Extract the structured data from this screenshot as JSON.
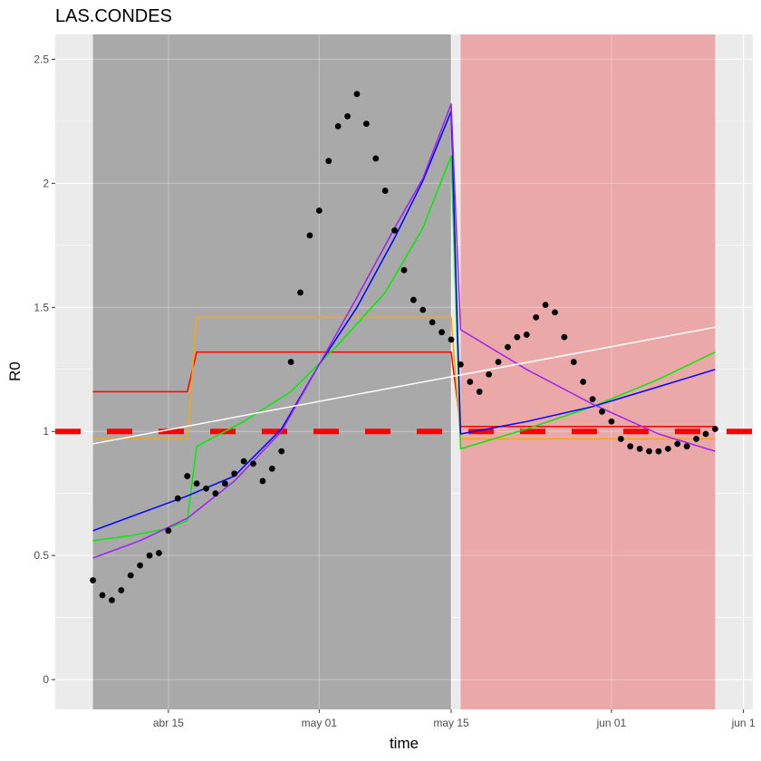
{
  "chart_data": {
    "type": "line",
    "title": "LAS.CONDES",
    "xlabel": "time",
    "ylabel": "R0",
    "x_range": [
      "2020-04-03",
      "2020-06-16"
    ],
    "ylim": [
      -0.12,
      2.6
    ],
    "y_ticks": [
      {
        "value": 0,
        "label": "0"
      },
      {
        "value": 0.5,
        "label": "0.5"
      },
      {
        "value": 1,
        "label": "1"
      },
      {
        "value": 1.5,
        "label": "1.5"
      },
      {
        "value": 2,
        "label": "2"
      },
      {
        "value": 2.5,
        "label": "2.5"
      }
    ],
    "x_ticks": [
      {
        "value": "2020-04-15",
        "label": "abr 15"
      },
      {
        "value": "2020-05-01",
        "label": "may 01"
      },
      {
        "value": "2020-05-15",
        "label": "may 15"
      },
      {
        "value": "2020-06-01",
        "label": "jun 01"
      },
      {
        "value": "2020-06-15",
        "label": "jun 1"
      }
    ],
    "shaded_regions": [
      {
        "start": "2020-04-07",
        "end": "2020-05-15",
        "color": "#a9a9a9"
      },
      {
        "start": "2020-05-16",
        "end": "2020-06-12",
        "color": "#eba8a8"
      }
    ],
    "reference_line": {
      "y": 1,
      "color": "#ff0000",
      "style": "dashed"
    },
    "points": {
      "color": "#000000",
      "x": [
        "2020-04-07",
        "2020-04-08",
        "2020-04-09",
        "2020-04-10",
        "2020-04-11",
        "2020-04-12",
        "2020-04-13",
        "2020-04-14",
        "2020-04-15",
        "2020-04-16",
        "2020-04-17",
        "2020-04-18",
        "2020-04-19",
        "2020-04-20",
        "2020-04-21",
        "2020-04-22",
        "2020-04-23",
        "2020-04-24",
        "2020-04-25",
        "2020-04-26",
        "2020-04-27",
        "2020-04-28",
        "2020-04-29",
        "2020-04-30",
        "2020-05-01",
        "2020-05-02",
        "2020-05-03",
        "2020-05-04",
        "2020-05-05",
        "2020-05-06",
        "2020-05-07",
        "2020-05-08",
        "2020-05-09",
        "2020-05-10",
        "2020-05-11",
        "2020-05-12",
        "2020-05-13",
        "2020-05-14",
        "2020-05-15",
        "2020-05-16",
        "2020-05-17",
        "2020-05-18",
        "2020-05-19",
        "2020-05-20",
        "2020-05-21",
        "2020-05-22",
        "2020-05-23",
        "2020-05-24",
        "2020-05-25",
        "2020-05-26",
        "2020-05-27",
        "2020-05-28",
        "2020-05-29",
        "2020-05-30",
        "2020-05-31",
        "2020-06-01",
        "2020-06-02",
        "2020-06-03",
        "2020-06-04",
        "2020-06-05",
        "2020-06-06",
        "2020-06-07",
        "2020-06-08",
        "2020-06-09",
        "2020-06-10",
        "2020-06-11",
        "2020-06-12"
      ],
      "y": [
        0.4,
        0.34,
        0.32,
        0.36,
        0.42,
        0.46,
        0.5,
        0.51,
        0.6,
        0.73,
        0.82,
        0.79,
        0.77,
        0.75,
        0.79,
        0.83,
        0.88,
        0.87,
        0.8,
        0.85,
        0.92,
        1.28,
        1.56,
        1.79,
        1.89,
        2.09,
        2.23,
        2.27,
        2.36,
        2.24,
        2.1,
        1.97,
        1.81,
        1.65,
        1.53,
        1.49,
        1.44,
        1.4,
        1.37,
        1.27,
        1.2,
        1.16,
        1.23,
        1.28,
        1.34,
        1.38,
        1.39,
        1.46,
        1.51,
        1.48,
        1.38,
        1.28,
        1.2,
        1.13,
        1.08,
        1.04,
        0.97,
        0.94,
        0.93,
        0.92,
        0.92,
        0.93,
        0.95,
        0.94,
        0.97,
        0.99,
        1.01
      ]
    },
    "series": [
      {
        "color": "#ff0000",
        "x": [
          "2020-04-07",
          "2020-04-17",
          "2020-04-18",
          "2020-05-15",
          "2020-05-16",
          "2020-06-12"
        ],
        "y": [
          1.16,
          1.16,
          1.32,
          1.32,
          1.02,
          1.02
        ]
      },
      {
        "color": "#ffa500",
        "x": [
          "2020-04-07",
          "2020-04-17",
          "2020-04-18",
          "2020-05-15",
          "2020-05-16",
          "2020-06-12"
        ],
        "y": [
          0.97,
          0.97,
          1.46,
          1.46,
          0.97,
          0.97
        ]
      },
      {
        "color": "#00ee00",
        "x": [
          "2020-04-07",
          "2020-04-11",
          "2020-04-15",
          "2020-04-17",
          "2020-04-18",
          "2020-04-23",
          "2020-04-28",
          "2020-05-03",
          "2020-05-08",
          "2020-05-12",
          "2020-05-15",
          "2020-05-16",
          "2020-05-23",
          "2020-05-30",
          "2020-06-06",
          "2020-06-12"
        ],
        "y": [
          0.56,
          0.58,
          0.61,
          0.64,
          0.94,
          1.04,
          1.16,
          1.35,
          1.56,
          1.82,
          2.11,
          0.93,
          1.01,
          1.1,
          1.21,
          1.32
        ]
      },
      {
        "color": "#0000ff",
        "x": [
          "2020-04-07",
          "2020-04-12",
          "2020-04-17",
          "2020-04-22",
          "2020-04-27",
          "2020-05-01",
          "2020-05-05",
          "2020-05-09",
          "2020-05-12",
          "2020-05-15",
          "2020-05-16",
          "2020-05-23",
          "2020-05-30",
          "2020-06-06",
          "2020-06-12"
        ],
        "y": [
          0.6,
          0.67,
          0.74,
          0.82,
          1.01,
          1.27,
          1.5,
          1.78,
          2.01,
          2.29,
          0.99,
          1.04,
          1.1,
          1.18,
          1.25
        ]
      },
      {
        "color": "#a020f0",
        "x": [
          "2020-04-07",
          "2020-04-12",
          "2020-04-17",
          "2020-04-22",
          "2020-04-27",
          "2020-05-01",
          "2020-05-05",
          "2020-05-09",
          "2020-05-12",
          "2020-05-15",
          "2020-05-16",
          "2020-05-23",
          "2020-05-30",
          "2020-06-06",
          "2020-06-12"
        ],
        "y": [
          0.49,
          0.56,
          0.65,
          0.8,
          1.0,
          1.27,
          1.54,
          1.82,
          2.02,
          2.32,
          1.41,
          1.25,
          1.11,
          0.99,
          0.92
        ]
      },
      {
        "color": "#ffffff",
        "x": [
          "2020-04-07",
          "2020-06-12"
        ],
        "y": [
          0.95,
          1.42
        ]
      }
    ]
  }
}
